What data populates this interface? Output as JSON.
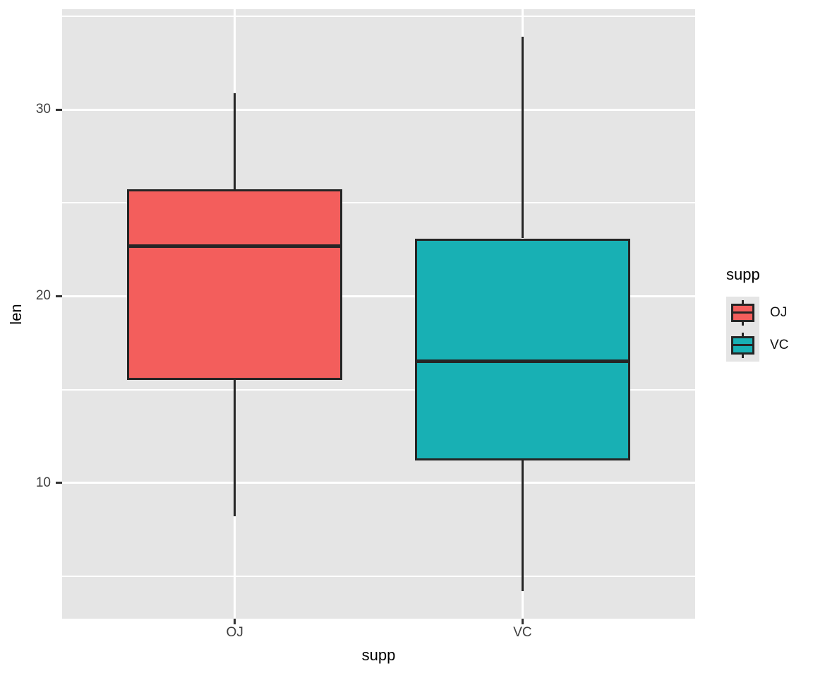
{
  "figure": {
    "background": "#ffffff",
    "panel_background": "#E5E5E5",
    "grid_color": "#FFFFFF",
    "stroke_color": "#252525",
    "tick_mark_color": "#333333",
    "tick_label_color": "#404040",
    "axis_title_color": "#000000",
    "legend_text_color": "#111111",
    "legend_key_background": "#E5E5E5"
  },
  "chart_data": {
    "type": "boxplot",
    "title": "",
    "xlabel": "supp",
    "ylabel": "len",
    "categories": [
      "OJ",
      "VC"
    ],
    "series": [
      {
        "name": "OJ",
        "fill": "#F35E5C",
        "min": 8.2,
        "q1": 15.525,
        "median": 22.7,
        "q3": 25.725,
        "max": 30.9
      },
      {
        "name": "VC",
        "fill": "#18B0B4",
        "min": 4.2,
        "q1": 11.2,
        "median": 16.5,
        "q3": 23.1,
        "max": 33.9
      }
    ],
    "y_major_ticks": [
      10,
      20,
      30
    ],
    "y_minor_ticks": [
      5,
      15,
      25,
      35
    ],
    "ylim": [
      2.715,
      35.385
    ],
    "grid": "on",
    "legend": {
      "position": "right",
      "title": "supp",
      "entries": [
        {
          "label": "OJ",
          "fill": "#F35E5C"
        },
        {
          "label": "VC",
          "fill": "#18B0B4"
        }
      ]
    }
  }
}
